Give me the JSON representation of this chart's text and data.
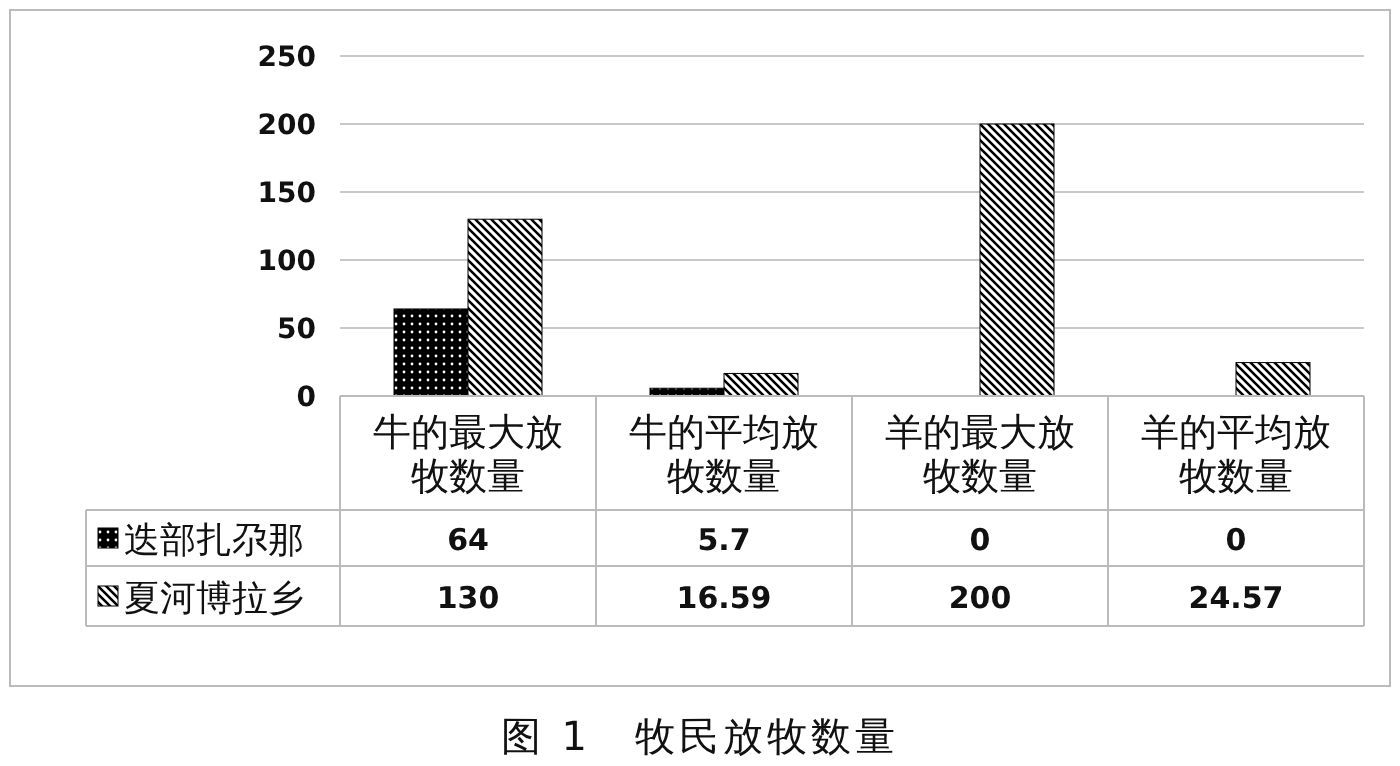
{
  "chart_data": {
    "type": "bar",
    "title": "图 1　牧民放牧数量",
    "categories": [
      "牛的最大放牧数量",
      "牛的平均放牧数量",
      "羊的最大放牧数量",
      "羊的平均放牧数量"
    ],
    "series": [
      {
        "name": "迭部扎尕那",
        "color": "#000000",
        "values": [
          64,
          5.7,
          0,
          0
        ]
      },
      {
        "name": "夏河博拉乡",
        "color": "#000000",
        "values": [
          130,
          16.59,
          200,
          24.57
        ]
      }
    ],
    "ylim": [
      0,
      250
    ],
    "yticks": [
      0,
      50,
      100,
      150,
      200,
      250
    ],
    "grid": "y",
    "legend": "bottom",
    "data_labels": true
  }
}
